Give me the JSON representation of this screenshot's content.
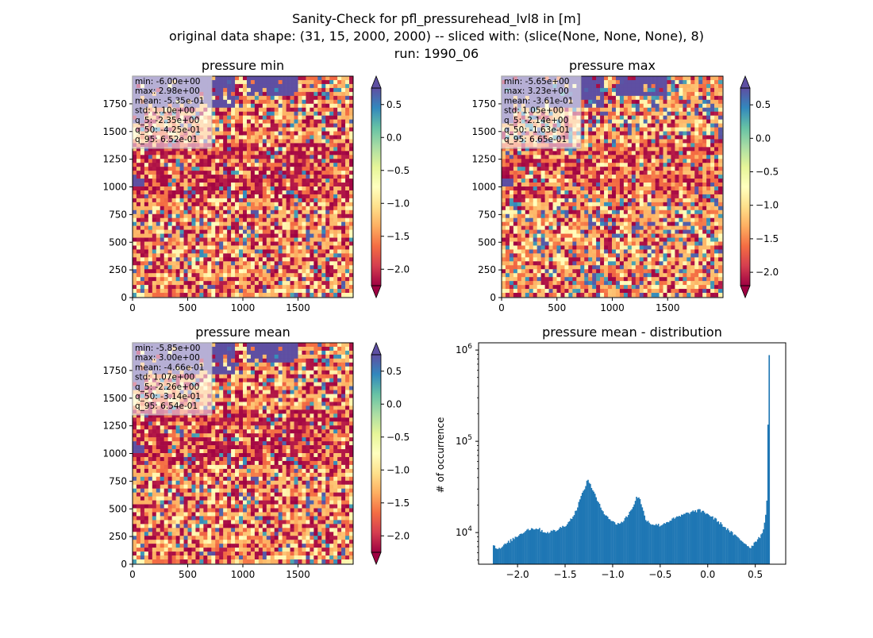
{
  "figure": {
    "title_lines": [
      "Sanity-Check for pfl_pressurehead_lvl8 in [m]",
      "original data shape: (31, 15, 2000, 2000) -- sliced with: (slice(None, None, None), 8)",
      "run: 1990_06"
    ]
  },
  "chart_data": [
    {
      "type": "heatmap",
      "title": "pressure min",
      "xlim": [
        0,
        2000
      ],
      "ylim": [
        0,
        2000
      ],
      "xticks": [
        0,
        500,
        1000,
        1500
      ],
      "yticks": [
        0,
        250,
        500,
        750,
        1000,
        1250,
        1500,
        1750
      ],
      "colorbar": {
        "colormap": "Spectral",
        "range": [
          -2.25,
          0.75
        ],
        "extend": "both",
        "ticks": [
          0.5,
          0.0,
          -0.5,
          -1.0,
          -1.5,
          -2.0
        ],
        "tick_labels": [
          "0.5",
          "0.0",
          "−0.5",
          "−1.0",
          "−1.5",
          "−2.0"
        ]
      },
      "stats": [
        "min: -6.00e+00",
        "max: 2.98e+00",
        "mean: -5.35e-01",
        "std: 1.10e+00",
        "q_5: -2.35e+00",
        "q_50: -4.25e-01",
        "q_95: 6.52e-01"
      ]
    },
    {
      "type": "heatmap",
      "title": "pressure max",
      "xlim": [
        0,
        2000
      ],
      "ylim": [
        0,
        2000
      ],
      "xticks": [
        0,
        500,
        1000,
        1500
      ],
      "yticks": [
        0,
        250,
        500,
        750,
        1000,
        1250,
        1500,
        1750
      ],
      "colorbar": {
        "colormap": "Spectral",
        "range": [
          -2.2,
          0.75
        ],
        "extend": "both",
        "ticks": [
          0.5,
          0.0,
          -0.5,
          -1.0,
          -1.5,
          -2.0
        ],
        "tick_labels": [
          "0.5",
          "0.0",
          "−0.5",
          "−1.0",
          "−1.5",
          "−2.0"
        ]
      },
      "stats": [
        "min: -5.65e+00",
        "max: 3.23e+00",
        "mean: -3.61e-01",
        "std: 1.05e+00",
        "q_5: -2.14e+00",
        "q_50: -1.63e-01",
        "q_95: 6.65e-01"
      ]
    },
    {
      "type": "heatmap",
      "title": "pressure mean",
      "xlim": [
        0,
        2000
      ],
      "ylim": [
        0,
        2000
      ],
      "xticks": [
        0,
        500,
        1000,
        1500
      ],
      "yticks": [
        0,
        250,
        500,
        750,
        1000,
        1250,
        1500,
        1750
      ],
      "colorbar": {
        "colormap": "Spectral",
        "range": [
          -2.25,
          0.75
        ],
        "extend": "both",
        "ticks": [
          0.5,
          0.0,
          -0.5,
          -1.0,
          -1.5,
          -2.0
        ],
        "tick_labels": [
          "0.5",
          "0.0",
          "−0.5",
          "−1.0",
          "−1.5",
          "−2.0"
        ]
      },
      "stats": [
        "min: -5.85e+00",
        "max: 3.00e+00",
        "mean: -4.66e-01",
        "std: 1.07e+00",
        "q_5: -2.26e+00",
        "q_50: -3.14e-01",
        "q_95: 6.54e-01"
      ]
    },
    {
      "type": "bar",
      "title": "pressure mean - distribution",
      "ylabel": "# of occurrence",
      "yscale": "log",
      "color": "#1f77b4",
      "xlim": [
        -2.41,
        0.82
      ],
      "ylim": [
        4500,
        1200000
      ],
      "xticks": [
        -2.0,
        -1.5,
        -1.0,
        -0.5,
        0.0,
        0.5
      ],
      "xtick_labels": [
        "−2.0",
        "−1.5",
        "−1.0",
        "−0.5",
        "0.0",
        "0.5"
      ],
      "yticks": [
        10000,
        100000,
        1000000
      ],
      "ytick_labels": [
        "10^4",
        "10^5",
        "10^6"
      ],
      "histogram_profile": {
        "x": [
          -2.26,
          -2.2,
          -2.1,
          -2.0,
          -1.9,
          -1.8,
          -1.7,
          -1.6,
          -1.5,
          -1.45,
          -1.4,
          -1.35,
          -1.3,
          -1.26,
          -1.23,
          -1.2,
          -1.15,
          -1.1,
          -1.0,
          -0.95,
          -0.9,
          -0.85,
          -0.8,
          -0.75,
          -0.72,
          -0.7,
          -0.65,
          -0.6,
          -0.5,
          -0.4,
          -0.3,
          -0.2,
          -0.1,
          -0.05,
          0.0,
          0.1,
          0.2,
          0.3,
          0.4,
          0.45,
          0.5,
          0.55,
          0.58,
          0.6,
          0.62,
          0.63,
          0.64
        ],
        "y": [
          7500,
          6500,
          7800,
          9200,
          10800,
          11200,
          10000,
          10500,
          12000,
          13500,
          16000,
          22000,
          30000,
          38000,
          33000,
          28000,
          21000,
          17000,
          13000,
          12500,
          13000,
          15000,
          18000,
          24000,
          25000,
          20000,
          14000,
          12500,
          12000,
          13500,
          15000,
          16500,
          17500,
          17000,
          16000,
          13500,
          11000,
          9000,
          7500,
          6800,
          8000,
          9000,
          10500,
          13000,
          20000,
          50000,
          880000
        ]
      }
    }
  ]
}
